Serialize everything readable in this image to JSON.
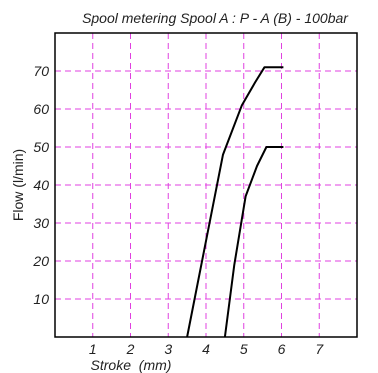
{
  "chart_data": {
    "type": "line",
    "title": "Spool metering Spool A : P - A (B) - 100bar",
    "xlabel": "Stroke  (mm)",
    "ylabel": "Flow (l/min)",
    "xlim": [
      0,
      8
    ],
    "ylim": [
      0,
      80
    ],
    "xticks": [
      1,
      2,
      3,
      4,
      5,
      6,
      7
    ],
    "yticks": [
      10,
      20,
      30,
      40,
      50,
      60,
      70
    ],
    "grid": true,
    "grid_color": "#e040e0",
    "line_color": "#000000",
    "series": [
      {
        "x": [
          3.5,
          4.45,
          4.95,
          5.3,
          5.55,
          6.05
        ],
        "y": [
          0,
          48,
          61,
          67,
          71,
          71
        ]
      },
      {
        "x": [
          4.5,
          4.75,
          5.05,
          5.35,
          5.6,
          6.05
        ],
        "y": [
          0,
          19,
          37,
          45,
          50,
          50
        ]
      }
    ]
  }
}
